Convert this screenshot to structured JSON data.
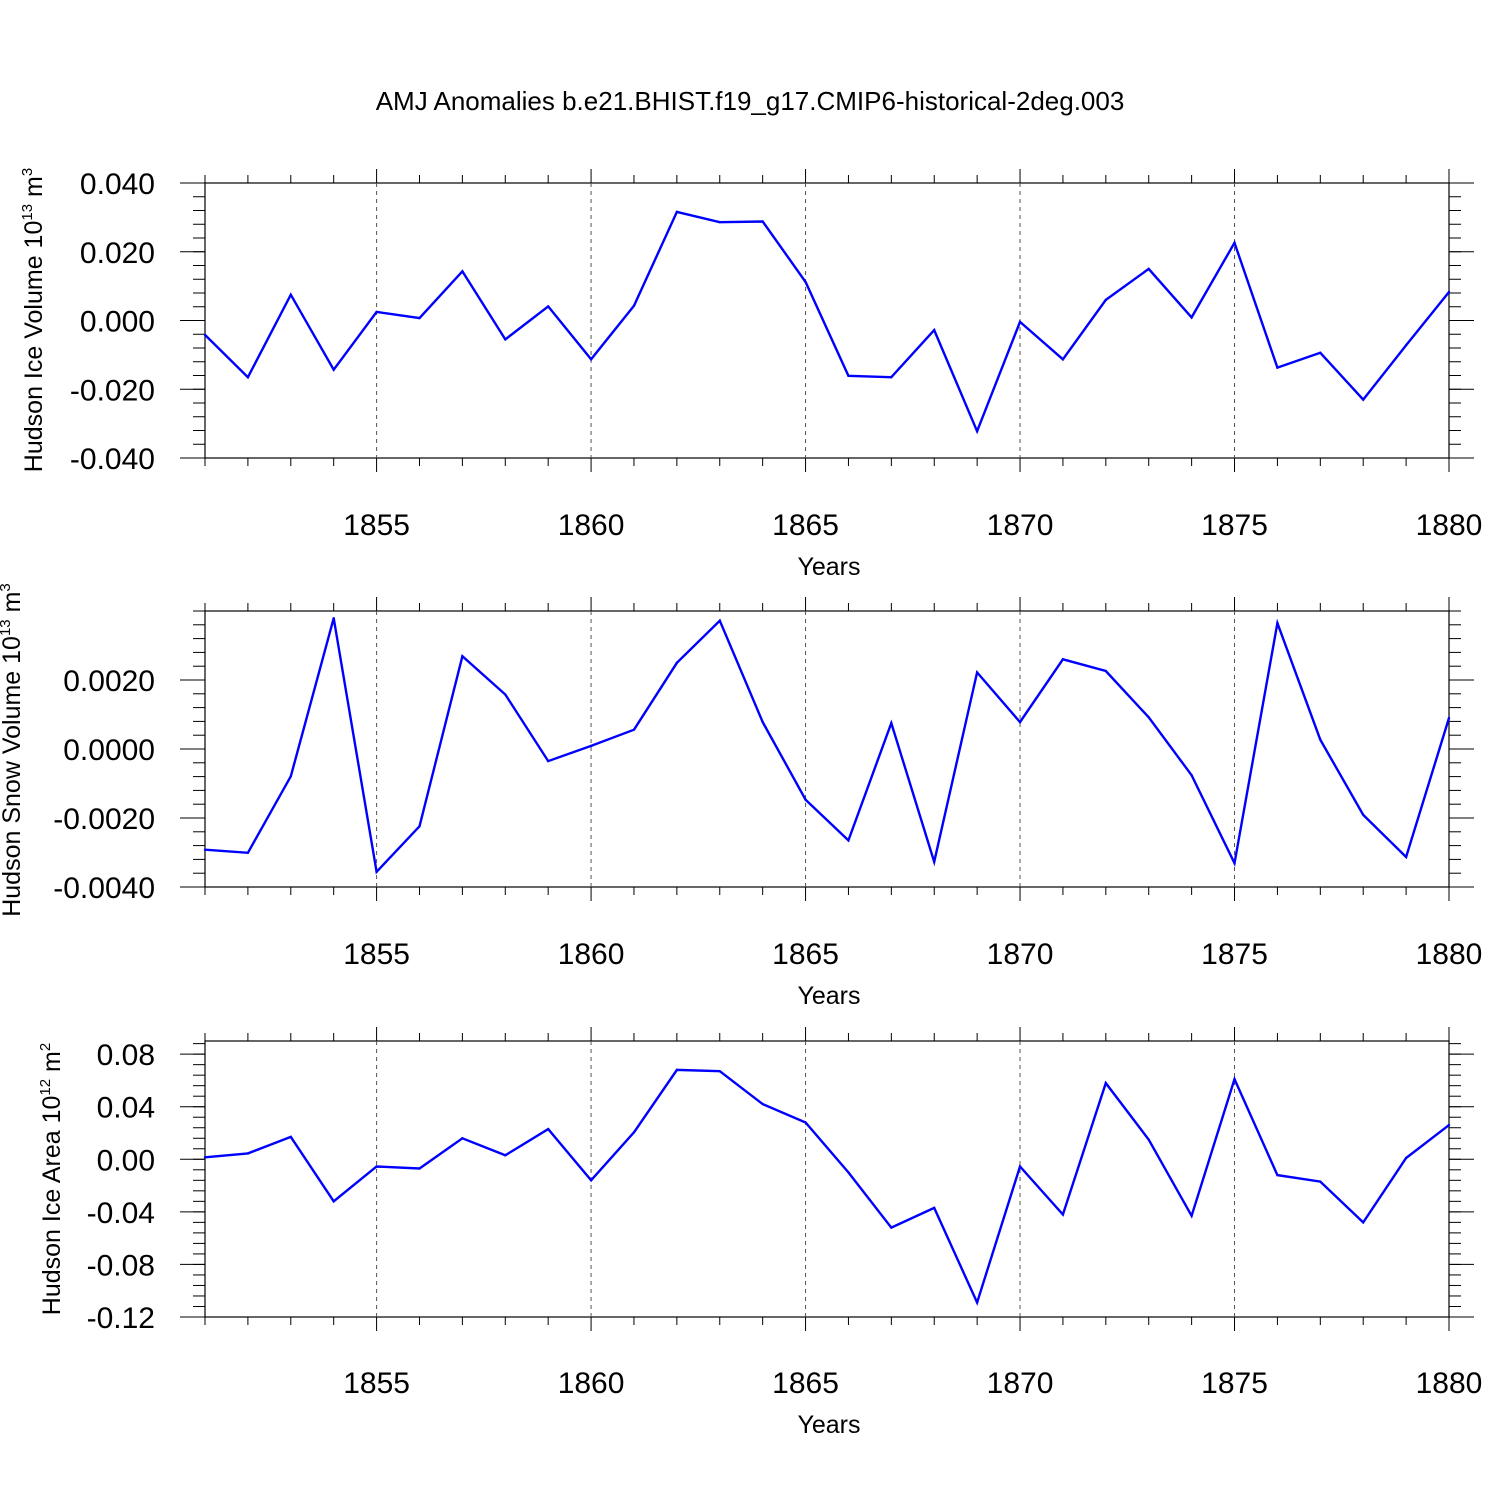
{
  "title": "AMJ Anomalies b.e21.BHIST.f19_g17.CMIP6-historical-2deg.003",
  "line_color": "#0000ff",
  "chart_data": [
    {
      "type": "line",
      "ylabel": "Hudson Ice Volume 10",
      "yunit_exp": "13",
      "yunit": "m",
      "yunit_pow": "3",
      "xlabel": "Years",
      "xlim": [
        1851,
        1880
      ],
      "ylim": [
        -0.04,
        0.04
      ],
      "x_ticks": [
        1855,
        1860,
        1865,
        1870,
        1875,
        1880
      ],
      "y_ticks": [
        -0.04,
        -0.02,
        0.0,
        0.02,
        0.04
      ],
      "y_tick_labels": [
        "-0.040",
        "-0.020",
        "0.000",
        "0.020",
        "0.040"
      ],
      "x": [
        1851,
        1852,
        1853,
        1854,
        1855,
        1856,
        1857,
        1858,
        1859,
        1860,
        1861,
        1862,
        1863,
        1864,
        1865,
        1866,
        1867,
        1868,
        1869,
        1870,
        1871,
        1872,
        1873,
        1874,
        1875,
        1876,
        1877,
        1878,
        1879,
        1880
      ],
      "values": [
        -0.0042,
        -0.0165,
        0.0075,
        -0.0143,
        0.0025,
        0.0007,
        0.0143,
        -0.0055,
        0.0041,
        -0.0113,
        0.0043,
        0.0316,
        0.0286,
        0.0288,
        0.0112,
        -0.0161,
        -0.0165,
        -0.0028,
        -0.0322,
        -0.0004,
        -0.0113,
        0.006,
        0.015,
        0.0009,
        0.0226,
        -0.0137,
        -0.0094,
        -0.023,
        -0.0072,
        0.0083
      ]
    },
    {
      "type": "line",
      "ylabel": "Hudson Snow Volume 10",
      "yunit_exp": "13",
      "yunit": "m",
      "yunit_pow": "3",
      "xlabel": "Years",
      "xlim": [
        1851,
        1880
      ],
      "ylim": [
        -0.004,
        0.004
      ],
      "x_ticks": [
        1855,
        1860,
        1865,
        1870,
        1875,
        1880
      ],
      "y_ticks": [
        -0.004,
        -0.002,
        0.0,
        0.002
      ],
      "y_tick_labels": [
        "-0.0040",
        "-0.0020",
        "0.0000",
        "0.0020"
      ],
      "x": [
        1851,
        1852,
        1853,
        1854,
        1855,
        1856,
        1857,
        1858,
        1859,
        1860,
        1861,
        1862,
        1863,
        1864,
        1865,
        1866,
        1867,
        1868,
        1869,
        1870,
        1871,
        1872,
        1873,
        1874,
        1875,
        1876,
        1877,
        1878,
        1879,
        1880
      ],
      "values": [
        -0.00292,
        -0.00301,
        -0.00079,
        0.00379,
        -0.00356,
        -0.00224,
        0.00269,
        0.00158,
        -0.00035,
        9e-05,
        0.00056,
        0.0025,
        0.00372,
        0.00078,
        -0.00147,
        -0.00265,
        0.00075,
        -0.00327,
        0.00222,
        0.00078,
        0.0026,
        0.00226,
        0.00092,
        -0.00076,
        -0.00331,
        0.00365,
        0.00027,
        -0.00191,
        -0.00313,
        0.0009
      ]
    },
    {
      "type": "line",
      "ylabel": "Hudson Ice Area 10",
      "yunit_exp": "12",
      "yunit": "m",
      "yunit_pow": "2",
      "xlabel": "Years",
      "xlim": [
        1851,
        1880
      ],
      "ylim": [
        -0.12,
        0.09
      ],
      "x_ticks": [
        1855,
        1860,
        1865,
        1870,
        1875,
        1880
      ],
      "y_ticks": [
        -0.12,
        -0.08,
        -0.04,
        0.0,
        0.04,
        0.08
      ],
      "y_tick_labels": [
        "-0.12",
        "-0.08",
        "-0.04",
        "0.00",
        "0.04",
        "0.08"
      ],
      "x": [
        1851,
        1852,
        1853,
        1854,
        1855,
        1856,
        1857,
        1858,
        1859,
        1860,
        1861,
        1862,
        1863,
        1864,
        1865,
        1866,
        1867,
        1868,
        1869,
        1870,
        1871,
        1872,
        1873,
        1874,
        1875,
        1876,
        1877,
        1878,
        1879,
        1880
      ],
      "values": [
        0.0015,
        0.0045,
        0.017,
        -0.032,
        -0.0055,
        -0.007,
        0.016,
        0.003,
        0.023,
        -0.016,
        0.0205,
        0.068,
        0.067,
        0.042,
        0.028,
        -0.01,
        -0.052,
        -0.037,
        -0.109,
        -0.0055,
        -0.042,
        0.058,
        0.015,
        -0.043,
        0.061,
        -0.012,
        -0.017,
        -0.048,
        0.001,
        0.026
      ]
    }
  ]
}
